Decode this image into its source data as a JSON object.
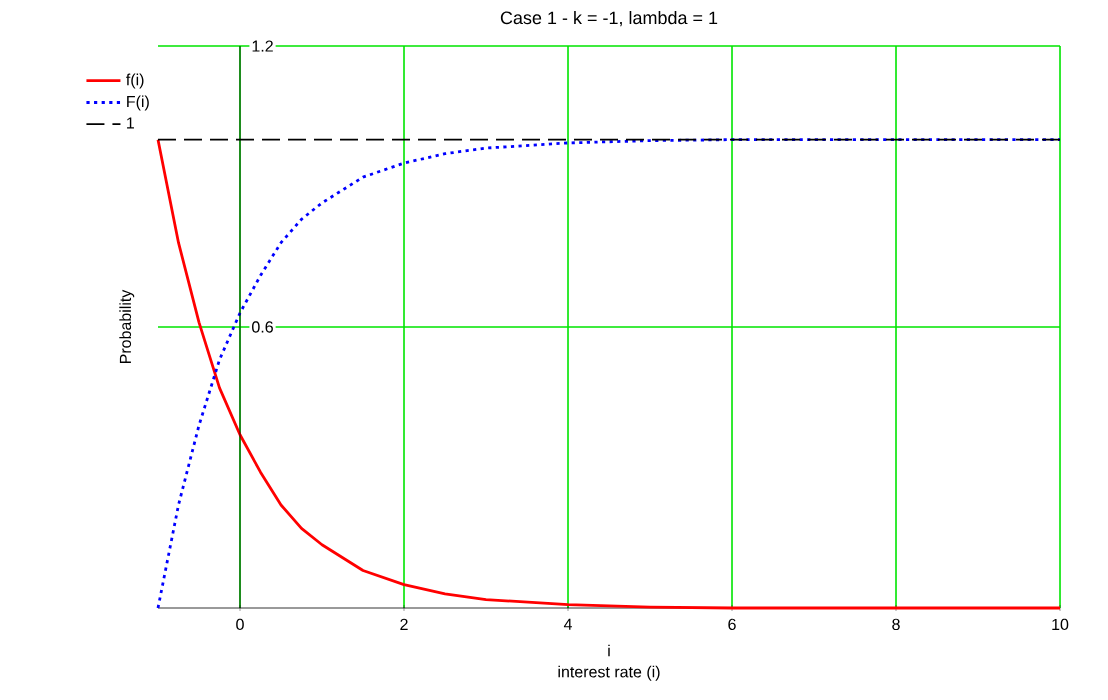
{
  "chart_data": {
    "type": "line",
    "title": "Case 1 - k = -1, lambda = 1",
    "xlabel": "interest rate (i)",
    "ylabel": "Probability",
    "annotations": [
      "i"
    ],
    "xlim": [
      -1,
      10
    ],
    "ylim": [
      0,
      1.2
    ],
    "xticks": [
      0,
      2,
      4,
      6,
      8,
      10
    ],
    "yticks": [
      0.6,
      1.2
    ],
    "grid": true,
    "legend": "left",
    "series": [
      {
        "name": "f(i)",
        "color": "#ff0000",
        "line_style": "solid",
        "x": [
          -1,
          -0.75,
          -0.5,
          -0.25,
          0,
          0.25,
          0.5,
          0.75,
          1,
          1.5,
          2,
          2.5,
          3,
          4,
          5,
          6,
          8,
          10
        ],
        "values": [
          1,
          0.78,
          0.61,
          0.47,
          0.37,
          0.29,
          0.22,
          0.17,
          0.135,
          0.08,
          0.05,
          0.03,
          0.018,
          0.007,
          0.002,
          0,
          0,
          0
        ]
      },
      {
        "name": "F(i)",
        "color": "#0000ff",
        "line_style": "dotted",
        "x": [
          -1,
          -0.75,
          -0.5,
          -0.25,
          0,
          0.25,
          0.5,
          0.75,
          1,
          1.5,
          2,
          2.5,
          3,
          4,
          5,
          6,
          8,
          10
        ],
        "values": [
          0,
          0.22,
          0.39,
          0.53,
          0.63,
          0.71,
          0.78,
          0.83,
          0.865,
          0.92,
          0.95,
          0.97,
          0.982,
          0.993,
          0.998,
          1,
          1,
          1
        ]
      },
      {
        "name": "1",
        "color": "#000000",
        "line_style": "dashed",
        "x": [
          -1,
          10
        ],
        "values": [
          1,
          1
        ]
      }
    ]
  }
}
